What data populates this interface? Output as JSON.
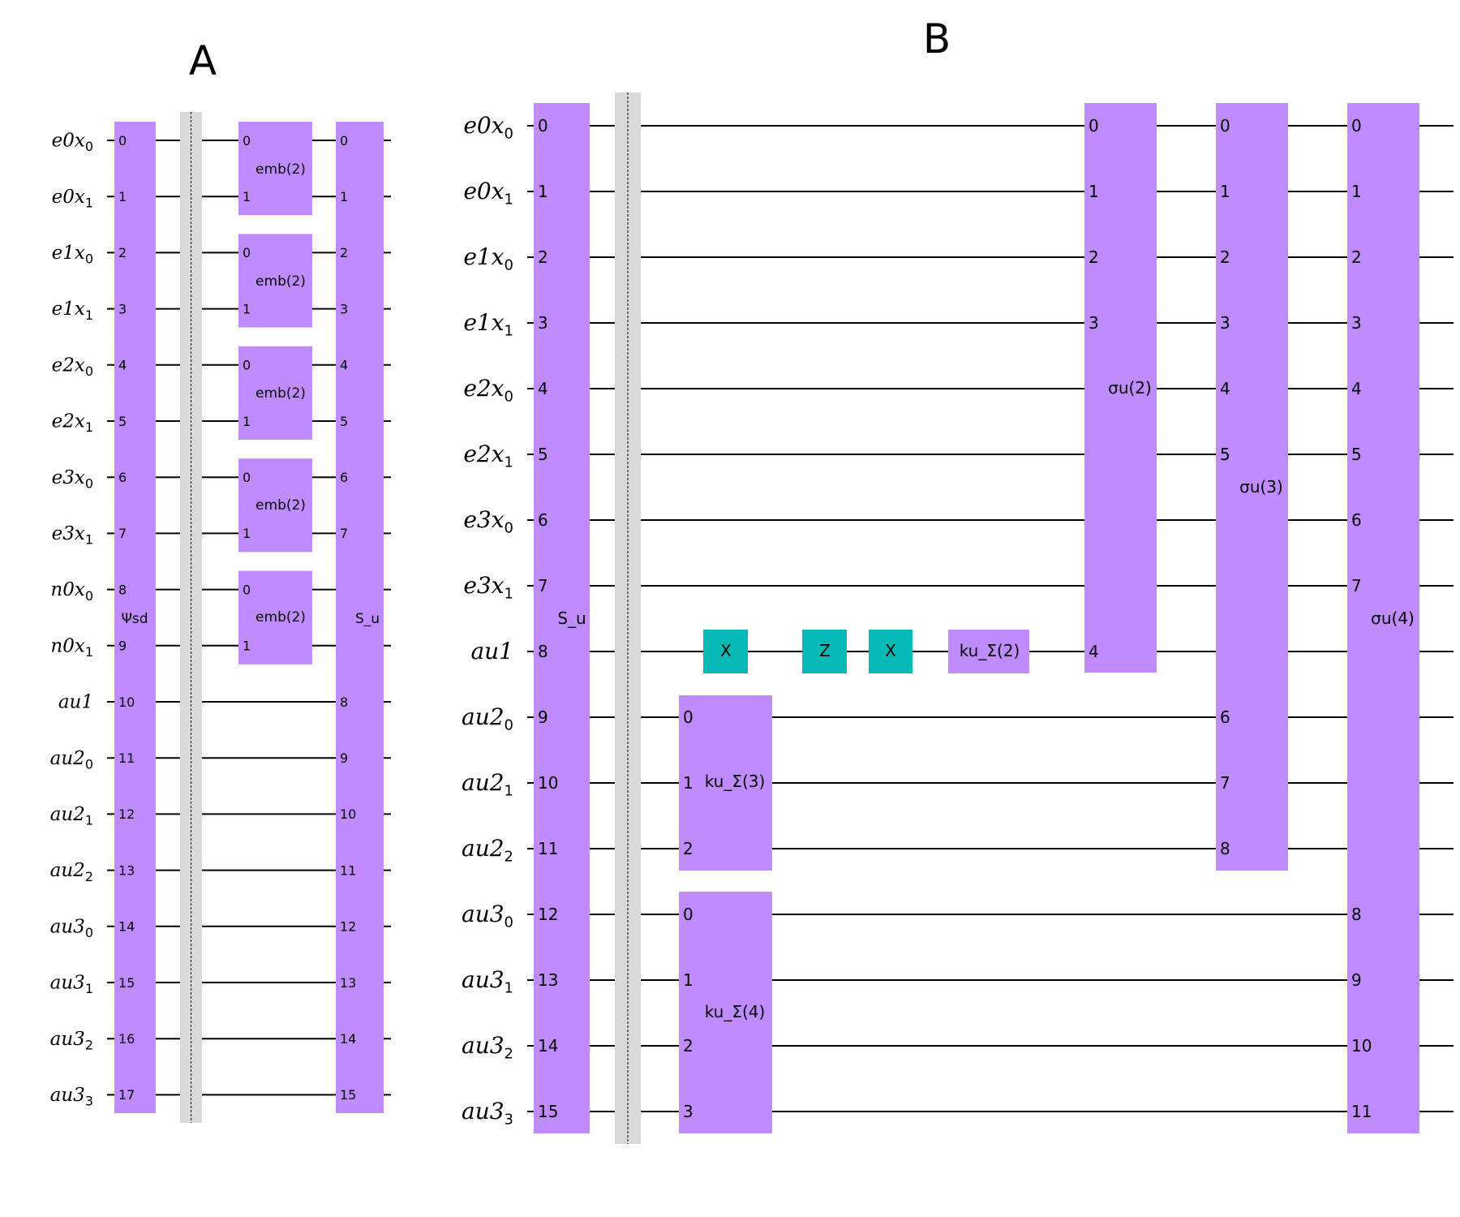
{
  "colors": {
    "gate_purple": "#bf8bff",
    "gate_teal": "#05bab6",
    "barrier": "#d9d9d9",
    "wire": "#000000"
  },
  "panel_a": {
    "title": "A",
    "wires": [
      {
        "base": "e0x",
        "sub": "0"
      },
      {
        "base": "e0x",
        "sub": "1"
      },
      {
        "base": "e1x",
        "sub": "0"
      },
      {
        "base": "e1x",
        "sub": "1"
      },
      {
        "base": "e2x",
        "sub": "0"
      },
      {
        "base": "e2x",
        "sub": "1"
      },
      {
        "base": "e3x",
        "sub": "0"
      },
      {
        "base": "e3x",
        "sub": "1"
      },
      {
        "base": "n0x",
        "sub": "0"
      },
      {
        "base": "n0x",
        "sub": "1"
      },
      {
        "base": "au1",
        "sub": ""
      },
      {
        "base": "au2",
        "sub": "0"
      },
      {
        "base": "au2",
        "sub": "1"
      },
      {
        "base": "au2",
        "sub": "2"
      },
      {
        "base": "au3",
        "sub": "0"
      },
      {
        "base": "au3",
        "sub": "1"
      },
      {
        "base": "au3",
        "sub": "2"
      },
      {
        "base": "au3",
        "sub": "3"
      }
    ],
    "gates": [
      {
        "label": "Ψsd",
        "wires": [
          0,
          1,
          2,
          3,
          4,
          5,
          6,
          7,
          8,
          9,
          10,
          11,
          12,
          13,
          14,
          15,
          16,
          17
        ],
        "ports": [
          "0",
          "1",
          "2",
          "3",
          "4",
          "5",
          "6",
          "7",
          "8",
          "9",
          "10",
          "11",
          "12",
          "13",
          "14",
          "15",
          "16",
          "17"
        ],
        "color": "gate_purple"
      },
      {
        "label": "emb(2)",
        "wires": [
          0,
          1
        ],
        "ports": [
          "0",
          "1"
        ],
        "color": "gate_purple"
      },
      {
        "label": "emb(2)",
        "wires": [
          2,
          3
        ],
        "ports": [
          "0",
          "1"
        ],
        "color": "gate_purple"
      },
      {
        "label": "emb(2)",
        "wires": [
          4,
          5
        ],
        "ports": [
          "0",
          "1"
        ],
        "color": "gate_purple"
      },
      {
        "label": "emb(2)",
        "wires": [
          6,
          7
        ],
        "ports": [
          "0",
          "1"
        ],
        "color": "gate_purple"
      },
      {
        "label": "emb(2)",
        "wires": [
          8,
          9
        ],
        "ports": [
          "0",
          "1"
        ],
        "color": "gate_purple"
      },
      {
        "label": "S_u",
        "wires": [
          0,
          1,
          2,
          3,
          4,
          5,
          6,
          7,
          8,
          9,
          10,
          11,
          12,
          13,
          14,
          15,
          16,
          17
        ],
        "ports": [
          "0",
          "1",
          "2",
          "3",
          "4",
          "5",
          "6",
          "7",
          "",
          "",
          "8",
          "9",
          "10",
          "11",
          "12",
          "13",
          "14",
          "15"
        ],
        "color": "gate_purple"
      }
    ]
  },
  "panel_b": {
    "title": "B",
    "wires": [
      {
        "base": "e0x",
        "sub": "0"
      },
      {
        "base": "e0x",
        "sub": "1"
      },
      {
        "base": "e1x",
        "sub": "0"
      },
      {
        "base": "e1x",
        "sub": "1"
      },
      {
        "base": "e2x",
        "sub": "0"
      },
      {
        "base": "e2x",
        "sub": "1"
      },
      {
        "base": "e3x",
        "sub": "0"
      },
      {
        "base": "e3x",
        "sub": "1"
      },
      {
        "base": "au1",
        "sub": ""
      },
      {
        "base": "au2",
        "sub": "0"
      },
      {
        "base": "au2",
        "sub": "1"
      },
      {
        "base": "au2",
        "sub": "2"
      },
      {
        "base": "au3",
        "sub": "0"
      },
      {
        "base": "au3",
        "sub": "1"
      },
      {
        "base": "au3",
        "sub": "2"
      },
      {
        "base": "au3",
        "sub": "3"
      }
    ],
    "gates": [
      {
        "label": "S_u",
        "wires": [
          0,
          1,
          2,
          3,
          4,
          5,
          6,
          7,
          8,
          9,
          10,
          11,
          12,
          13,
          14,
          15
        ],
        "ports": [
          "0",
          "1",
          "2",
          "3",
          "4",
          "5",
          "6",
          "7",
          "8",
          "9",
          "10",
          "11",
          "12",
          "13",
          "14",
          "15"
        ],
        "color": "gate_purple"
      },
      {
        "label": "X",
        "wires": [
          8
        ],
        "ports": [
          ""
        ],
        "color": "gate_teal"
      },
      {
        "label": "ku_Σ(3)",
        "wires": [
          9,
          10,
          11
        ],
        "ports": [
          "0",
          "1",
          "2"
        ],
        "color": "gate_purple"
      },
      {
        "label": "ku_Σ(4)",
        "wires": [
          12,
          13,
          14,
          15
        ],
        "ports": [
          "0",
          "1",
          "2",
          "3"
        ],
        "color": "gate_purple"
      },
      {
        "label": "Z",
        "wires": [
          8
        ],
        "ports": [
          ""
        ],
        "color": "gate_teal"
      },
      {
        "label": "X",
        "wires": [
          8
        ],
        "ports": [
          ""
        ],
        "color": "gate_teal"
      },
      {
        "label": "ku_Σ(2)",
        "wires": [
          8
        ],
        "ports": [
          ""
        ],
        "color": "gate_purple"
      },
      {
        "label": "σu(2)",
        "wires": [
          0,
          1,
          2,
          3,
          4,
          5,
          6,
          7,
          8
        ],
        "ports": [
          "0",
          "1",
          "2",
          "3",
          "",
          "",
          "",
          "",
          "4"
        ],
        "color": "gate_purple"
      },
      {
        "label": "σu(3)",
        "wires": [
          0,
          1,
          2,
          3,
          4,
          5,
          6,
          7,
          8,
          9,
          10,
          11
        ],
        "ports": [
          "0",
          "1",
          "2",
          "3",
          "4",
          "5",
          "",
          "",
          "",
          "6",
          "7",
          "8"
        ],
        "color": "gate_purple"
      },
      {
        "label": "σu(4)",
        "wires": [
          0,
          1,
          2,
          3,
          4,
          5,
          6,
          7,
          8,
          9,
          10,
          11,
          12,
          13,
          14,
          15
        ],
        "ports": [
          "0",
          "1",
          "2",
          "3",
          "4",
          "5",
          "6",
          "7",
          "",
          "",
          "",
          "",
          "8",
          "9",
          "10",
          "11"
        ],
        "color": "gate_purple"
      }
    ]
  }
}
